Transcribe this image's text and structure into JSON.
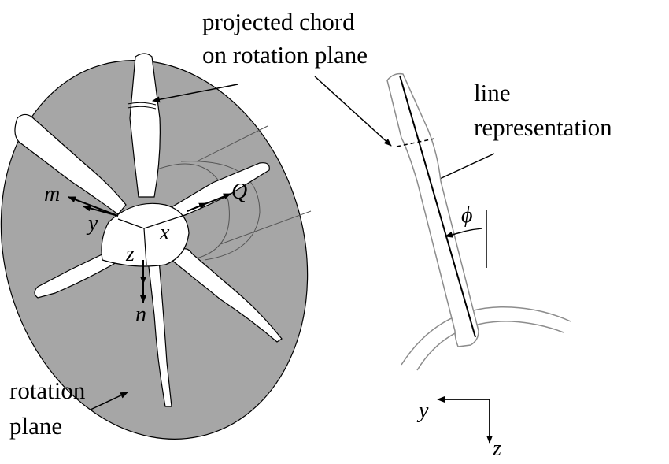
{
  "labels": {
    "projected_chord_line1": "projected chord",
    "projected_chord_line2": "on rotation plane",
    "line_repr_line1": "line",
    "line_repr_line2": "representation",
    "rotation_plane_line1": "rotation",
    "rotation_plane_line2": "plane"
  },
  "symbols": {
    "m": "m",
    "y": "y",
    "x": "x",
    "z": "z",
    "n": "n",
    "Q": "Q",
    "phi": "ϕ",
    "axis_y": "y",
    "axis_z": "z"
  },
  "colors": {
    "disk_fill": "#a6a6a6",
    "blade_fill": "#ffffff",
    "stroke": "#000000",
    "outline_gray": "#8c8c8c"
  }
}
